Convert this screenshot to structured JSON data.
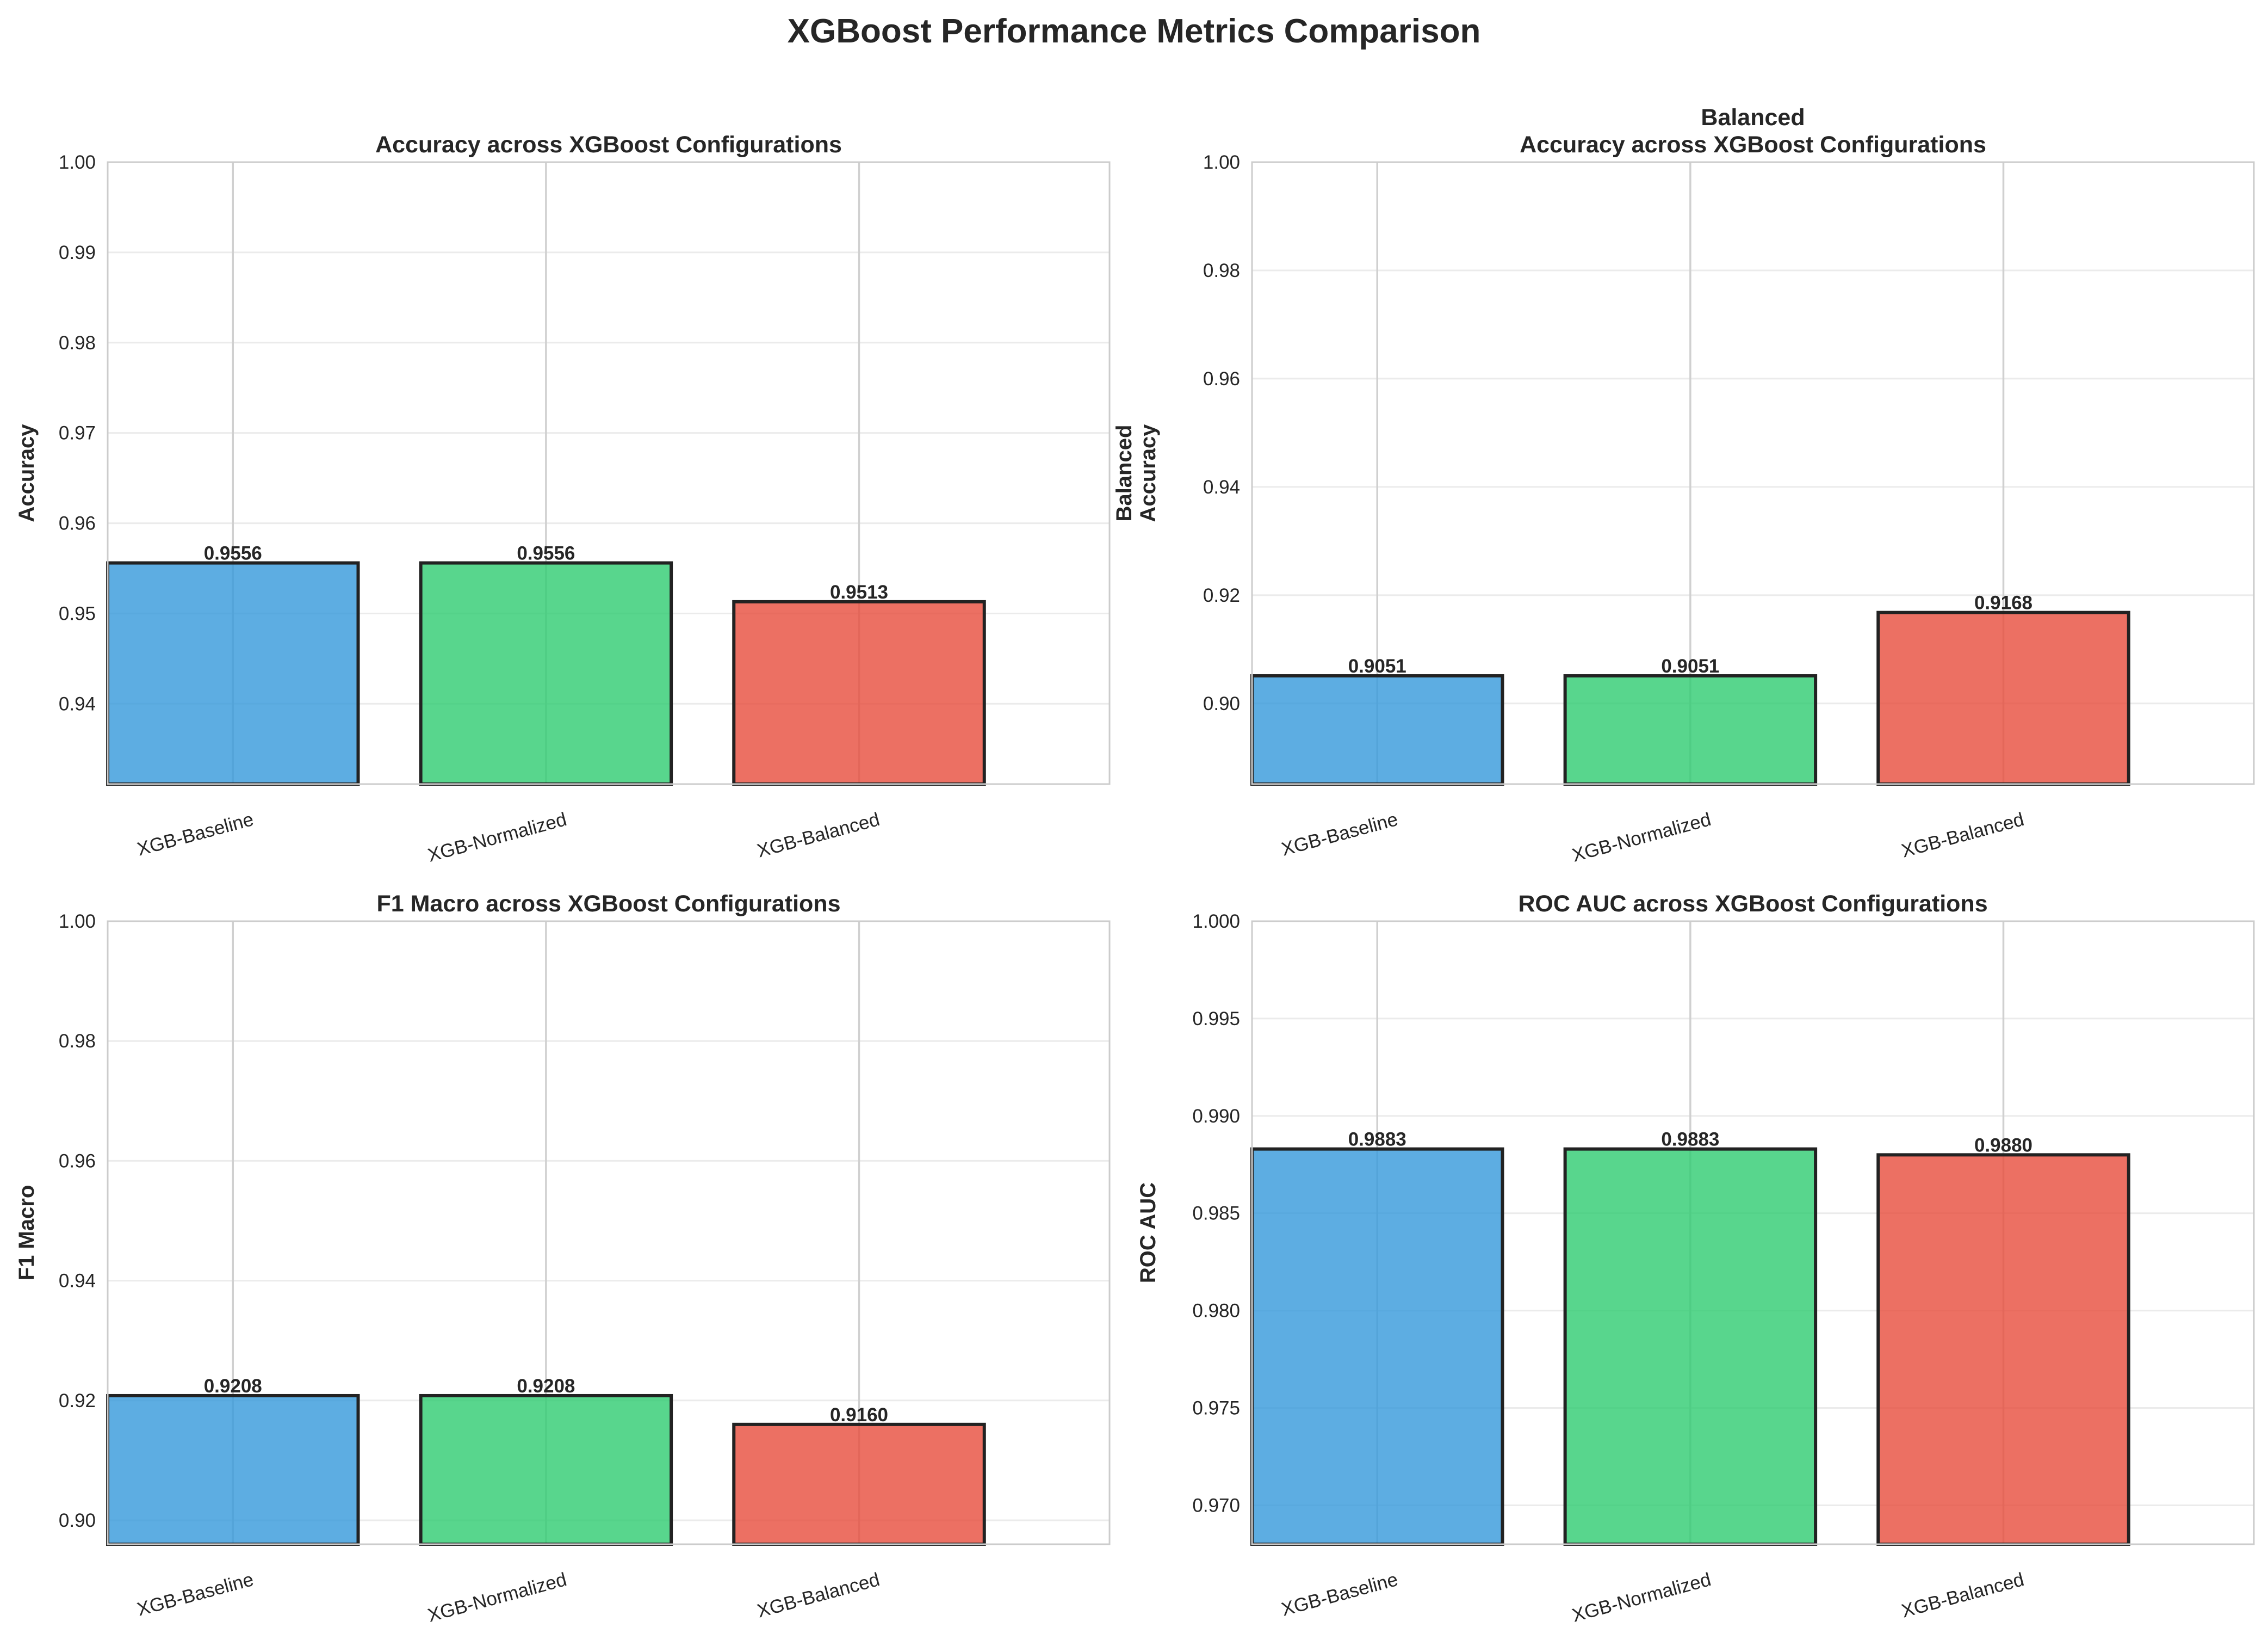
{
  "suptitle": "XGBoost Performance Metrics Comparison",
  "colors": [
    "#3498db",
    "#2ecc71",
    "#e74c3c"
  ],
  "chart_data": [
    {
      "type": "bar",
      "title": [
        "Accuracy across XGBoost Configurations"
      ],
      "ylabel": [
        "Accuracy"
      ],
      "categories": [
        "XGB-Baseline",
        "XGB-Normalized",
        "XGB-Balanced"
      ],
      "values": [
        0.9556,
        0.9556,
        0.9513
      ],
      "value_labels": [
        "0.9556",
        "0.9556",
        "0.9513"
      ],
      "ylim": [
        0.9311,
        1.0
      ],
      "yticks": [
        0.94,
        0.95,
        0.96,
        0.97,
        0.98,
        0.99,
        1.0
      ],
      "ytick_labels": [
        "0.94",
        "0.95",
        "0.96",
        "0.97",
        "0.98",
        "0.99",
        "1.00"
      ],
      "grid": true
    },
    {
      "type": "bar",
      "title": [
        "Balanced",
        "Accuracy across XGBoost Configurations"
      ],
      "ylabel": [
        "Balanced",
        "Accuracy"
      ],
      "categories": [
        "XGB-Baseline",
        "XGB-Normalized",
        "XGB-Balanced"
      ],
      "values": [
        0.9051,
        0.9051,
        0.9168
      ],
      "value_labels": [
        "0.9051",
        "0.9051",
        "0.9168"
      ],
      "ylim": [
        0.8851,
        1.0
      ],
      "yticks": [
        0.9,
        0.92,
        0.94,
        0.96,
        0.98,
        1.0
      ],
      "ytick_labels": [
        "0.90",
        "0.92",
        "0.94",
        "0.96",
        "0.98",
        "1.00"
      ],
      "grid": true
    },
    {
      "type": "bar",
      "title": [
        "F1 Macro across XGBoost Configurations"
      ],
      "ylabel": [
        "F1 Macro"
      ],
      "categories": [
        "XGB-Baseline",
        "XGB-Normalized",
        "XGB-Balanced"
      ],
      "values": [
        0.9208,
        0.9208,
        0.916
      ],
      "value_labels": [
        "0.9208",
        "0.9208",
        "0.9160"
      ],
      "ylim": [
        0.896,
        1.0
      ],
      "yticks": [
        0.9,
        0.92,
        0.94,
        0.96,
        0.98,
        1.0
      ],
      "ytick_labels": [
        "0.90",
        "0.92",
        "0.94",
        "0.96",
        "0.98",
        "1.00"
      ],
      "grid": true
    },
    {
      "type": "bar",
      "title": [
        "ROC AUC across XGBoost Configurations"
      ],
      "ylabel": [
        "ROC AUC"
      ],
      "categories": [
        "XGB-Baseline",
        "XGB-Normalized",
        "XGB-Balanced"
      ],
      "values": [
        0.9883,
        0.9883,
        0.988
      ],
      "value_labels": [
        "0.9883",
        "0.9883",
        "0.9880"
      ],
      "ylim": [
        0.968,
        1.0
      ],
      "yticks": [
        0.97,
        0.975,
        0.98,
        0.985,
        0.99,
        0.995,
        1.0
      ],
      "ytick_labels": [
        "0.970",
        "0.975",
        "0.980",
        "0.985",
        "0.990",
        "0.995",
        "1.000"
      ],
      "grid": true
    }
  ]
}
